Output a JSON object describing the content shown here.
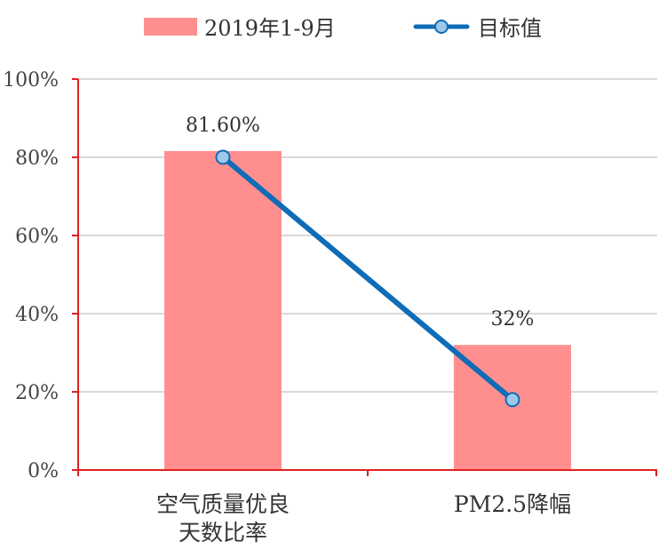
{
  "chart_data": {
    "type": "bar",
    "categories": [
      [
        "空气质量优良",
        "天数比率"
      ],
      [
        "PM2.5降幅"
      ]
    ],
    "series": [
      {
        "name": "2019年1-9月",
        "type": "bar",
        "values": [
          81.6,
          32
        ],
        "data_labels": [
          "81.60%",
          "32%"
        ],
        "color": "#ff8f8f"
      },
      {
        "name": "目标值",
        "type": "line",
        "values": [
          80,
          18
        ],
        "color": "#0f6cb6",
        "marker_fill": "#9ec8ea"
      }
    ],
    "ylim": [
      0,
      100
    ],
    "yticks": [
      0,
      20,
      40,
      60,
      80,
      100
    ],
    "ytick_labels": [
      "0%",
      "20%",
      "40%",
      "60%",
      "80%",
      "100%"
    ],
    "grid": true,
    "legend_position": "top",
    "axis_color": "#e02020",
    "grid_color": "#d9d9d9"
  }
}
